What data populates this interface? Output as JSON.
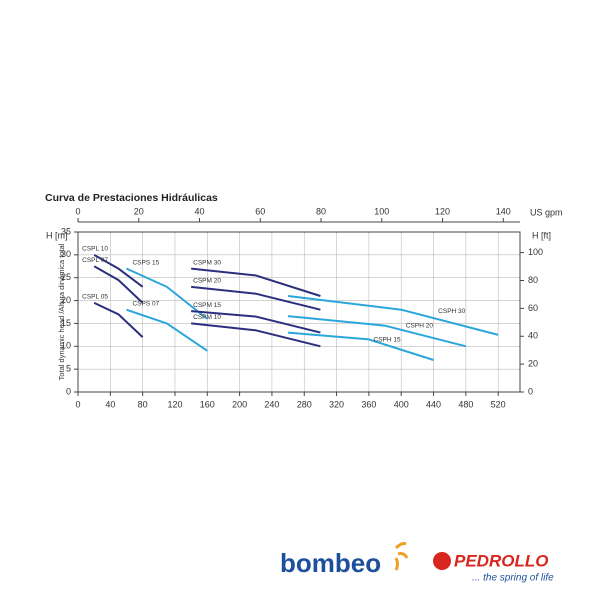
{
  "chart_data": {
    "type": "line",
    "title": "Curva de Prestaciones Hidráulicas",
    "ylabel": "Total dynamic head /Altura dinámica total",
    "y_unit": "H [m]",
    "y2_unit": "H [ft]",
    "x2_unit": "US gpm",
    "xlim": [
      0,
      547
    ],
    "xticks": [
      0,
      40,
      80,
      120,
      160,
      200,
      240,
      280,
      320,
      360,
      400,
      440,
      480,
      520
    ],
    "x2lim": [
      0,
      145.5
    ],
    "x2ticks": [
      0,
      20,
      40,
      60,
      80,
      100,
      120,
      140
    ],
    "ylim": [
      0,
      35
    ],
    "yticks": [
      0,
      5,
      10,
      15,
      20,
      25,
      30,
      35
    ],
    "y2lim": [
      0,
      114.8
    ],
    "y2ticks": [
      0,
      20,
      40,
      60,
      80,
      100
    ],
    "grid": true,
    "series": [
      {
        "name": "CSPL 10",
        "color": "#2b2f7e",
        "x": [
          20,
          50,
          80
        ],
        "values": [
          30,
          27,
          23
        ]
      },
      {
        "name": "CSPL 07",
        "color": "#2b2f7e",
        "x": [
          20,
          50,
          80
        ],
        "values": [
          27.5,
          24.5,
          19.5
        ]
      },
      {
        "name": "CSPL 05",
        "color": "#2b2f7e",
        "x": [
          20,
          50,
          80
        ],
        "values": [
          19.5,
          17,
          12
        ]
      },
      {
        "name": "CSPS 15",
        "color": "#2ba6dc",
        "x": [
          60,
          110,
          160
        ],
        "values": [
          27,
          23,
          16
        ]
      },
      {
        "name": "CSPS 07",
        "color": "#2ba6dc",
        "x": [
          60,
          110,
          160
        ],
        "values": [
          18,
          15,
          9
        ]
      },
      {
        "name": "CSPM 30",
        "color": "#2b2f7e",
        "x": [
          140,
          220,
          300
        ],
        "values": [
          27,
          25.5,
          21
        ]
      },
      {
        "name": "CSPM 20",
        "color": "#2b2f7e",
        "x": [
          140,
          220,
          300
        ],
        "values": [
          23,
          21.5,
          18
        ]
      },
      {
        "name": "CSPM 15",
        "color": "#2b2f7e",
        "x": [
          140,
          220,
          300
        ],
        "values": [
          17.7,
          16.5,
          13
        ]
      },
      {
        "name": "CSPM 10",
        "color": "#2b2f7e",
        "x": [
          140,
          220,
          300
        ],
        "values": [
          15,
          13.5,
          10
        ]
      },
      {
        "name": "CSPH 30",
        "color": "#2ba6dc",
        "x": [
          260,
          400,
          520
        ],
        "values": [
          21,
          18,
          12.5
        ]
      },
      {
        "name": "CSPH 20",
        "color": "#2ba6dc",
        "x": [
          260,
          380,
          480
        ],
        "values": [
          16.6,
          14.5,
          10
        ]
      },
      {
        "name": "CSPH 15",
        "color": "#2ba6dc",
        "x": [
          260,
          360,
          440
        ],
        "values": [
          13,
          11.5,
          7
        ]
      }
    ]
  },
  "logos": {
    "bombeo": "bombeo",
    "pedrollo": "PEDROLLO",
    "slogan": "... the spring of life"
  }
}
